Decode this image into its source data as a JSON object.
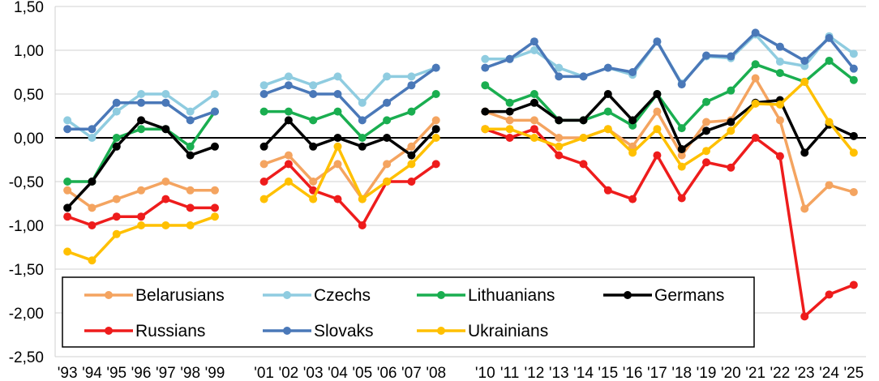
{
  "chart_data": {
    "type": "line",
    "title": "",
    "xlabel": "",
    "ylabel": "",
    "ylim": [
      -2.5,
      1.5
    ],
    "yticks": [
      "1,50",
      "1,00",
      "0,50",
      "0,00",
      "-0,50",
      "-1,00",
      "-1,50",
      "-2,00",
      "-2,50"
    ],
    "ytick_values": [
      1.5,
      1.0,
      0.5,
      0.0,
      -0.5,
      -1.0,
      -1.5,
      -2.0,
      -2.5
    ],
    "x": [
      1993,
      1994,
      1995,
      1996,
      1997,
      1998,
      1999,
      2000,
      2001,
      2002,
      2003,
      2004,
      2005,
      2006,
      2007,
      2008,
      2009,
      2010,
      2011,
      2012,
      2013,
      2014,
      2015,
      2016,
      2017,
      2018,
      2019,
      2020,
      2021,
      2022,
      2023,
      2024,
      2025
    ],
    "xtick_labels": [
      "'93",
      "'94",
      "'95",
      "'96",
      "'97",
      "'98",
      "'99",
      "",
      "'01",
      "'02",
      "'03",
      "'04",
      "'05",
      "'06",
      "'07",
      "'08",
      "",
      "'10",
      "'11",
      "'12",
      "'13",
      "'14",
      "'15",
      "'16",
      "'17",
      "'18",
      "'19",
      "'20",
      "'21",
      "'22",
      "'23",
      "'24",
      "'25"
    ],
    "grid": "horizontal",
    "zero_line": true,
    "legend_position": "bottom-inside",
    "series": [
      {
        "name": "Belarusians",
        "color": "#F4A460",
        "values": [
          -0.6,
          -0.8,
          -0.7,
          -0.6,
          -0.5,
          -0.6,
          -0.6,
          null,
          -0.3,
          -0.2,
          -0.5,
          -0.3,
          -0.7,
          -0.3,
          -0.1,
          0.2,
          null,
          0.3,
          0.2,
          0.2,
          0.0,
          0.0,
          0.1,
          -0.1,
          0.3,
          -0.2,
          0.18,
          0.2,
          0.68,
          0.2,
          -0.81,
          -0.54,
          -0.62
        ]
      },
      {
        "name": "Czechs",
        "color": "#8FCCE0",
        "values": [
          0.2,
          0.0,
          0.3,
          0.5,
          0.5,
          0.3,
          0.5,
          null,
          0.6,
          0.7,
          0.6,
          0.7,
          0.4,
          0.7,
          0.7,
          0.8,
          null,
          0.9,
          0.9,
          1.0,
          0.8,
          0.7,
          0.8,
          0.72,
          1.1,
          0.62,
          0.93,
          0.91,
          1.18,
          0.87,
          0.82,
          1.16,
          0.96
        ]
      },
      {
        "name": "Lithuanians",
        "color": "#1AAE50",
        "values": [
          -0.5,
          -0.5,
          0.0,
          0.1,
          0.1,
          -0.1,
          0.3,
          null,
          0.3,
          0.3,
          0.2,
          0.3,
          0.0,
          0.2,
          0.3,
          0.5,
          null,
          0.6,
          0.4,
          0.5,
          0.2,
          0.2,
          0.3,
          0.14,
          0.5,
          0.11,
          0.41,
          0.54,
          0.84,
          0.74,
          0.64,
          0.88,
          0.66
        ]
      },
      {
        "name": "Germans",
        "color": "#000000",
        "values": [
          -0.8,
          -0.5,
          -0.1,
          0.2,
          0.1,
          -0.2,
          -0.1,
          null,
          -0.1,
          0.2,
          -0.1,
          0.0,
          -0.1,
          0.0,
          -0.2,
          0.1,
          null,
          0.3,
          0.3,
          0.4,
          0.2,
          0.2,
          0.5,
          0.2,
          0.5,
          -0.13,
          0.08,
          0.18,
          0.4,
          0.43,
          -0.17,
          0.15,
          0.02
        ]
      },
      {
        "name": "Russians",
        "color": "#EE1C1C",
        "values": [
          -0.9,
          -1.0,
          -0.9,
          -0.9,
          -0.7,
          -0.8,
          -0.8,
          null,
          -0.5,
          -0.3,
          -0.6,
          -0.7,
          -1.0,
          -0.5,
          -0.5,
          -0.3,
          null,
          0.1,
          0.0,
          0.1,
          -0.2,
          -0.3,
          -0.6,
          -0.7,
          -0.2,
          -0.69,
          -0.28,
          -0.34,
          0.0,
          -0.21,
          -2.04,
          -1.79,
          -1.68
        ]
      },
      {
        "name": "Slovaks",
        "color": "#4A78B8",
        "values": [
          0.1,
          0.1,
          0.4,
          0.4,
          0.4,
          0.2,
          0.3,
          null,
          0.5,
          0.6,
          0.5,
          0.5,
          0.2,
          0.4,
          0.6,
          0.8,
          null,
          0.8,
          0.9,
          1.1,
          0.7,
          0.7,
          0.8,
          0.75,
          1.1,
          0.61,
          0.94,
          0.93,
          1.2,
          1.04,
          0.88,
          1.14,
          0.79
        ]
      },
      {
        "name": "Ukrainians",
        "color": "#FFC000",
        "values": [
          -1.3,
          -1.4,
          -1.1,
          -1.0,
          -1.0,
          -1.0,
          -0.9,
          null,
          -0.7,
          -0.5,
          -0.7,
          -0.1,
          -0.7,
          -0.5,
          -0.3,
          0.0,
          null,
          0.1,
          0.1,
          0.0,
          -0.1,
          0.0,
          0.1,
          -0.17,
          0.1,
          -0.33,
          -0.15,
          0.08,
          0.39,
          0.38,
          0.64,
          0.18,
          -0.17
        ]
      }
    ]
  }
}
